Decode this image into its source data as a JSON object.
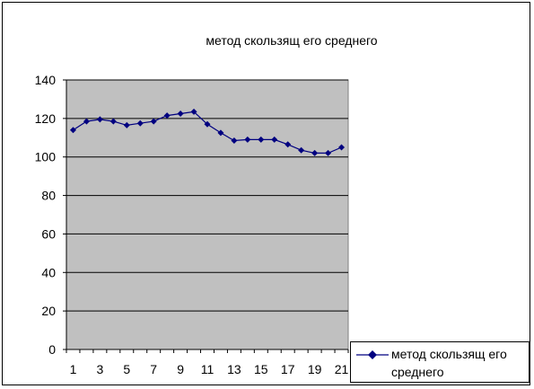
{
  "chart_data": {
    "type": "line",
    "title": "метод  скользящ его  среднего",
    "xlabel": "",
    "ylabel": "",
    "x": [
      1,
      2,
      3,
      4,
      5,
      6,
      7,
      8,
      9,
      10,
      11,
      12,
      13,
      14,
      15,
      16,
      17,
      18,
      19,
      20,
      21
    ],
    "x_tick_labels": [
      "1",
      "3",
      "5",
      "7",
      "9",
      "11",
      "13",
      "15",
      "17",
      "19",
      "21"
    ],
    "y_tick_labels": [
      "0",
      "20",
      "40",
      "60",
      "80",
      "100",
      "120",
      "140"
    ],
    "ylim": [
      0,
      140
    ],
    "grid": true,
    "plot_background": "#c0c0c0",
    "legend_position": "bottom-right",
    "series": [
      {
        "name": "метод  скользящ его среднего",
        "color": "#000080",
        "marker": "diamond",
        "values": [
          114,
          118.5,
          119.5,
          118.5,
          116.5,
          117.5,
          118.5,
          121.5,
          122.5,
          123.5,
          117,
          112.5,
          108.5,
          109,
          109,
          109,
          106.5,
          103.5,
          102,
          102,
          105
        ]
      }
    ]
  }
}
